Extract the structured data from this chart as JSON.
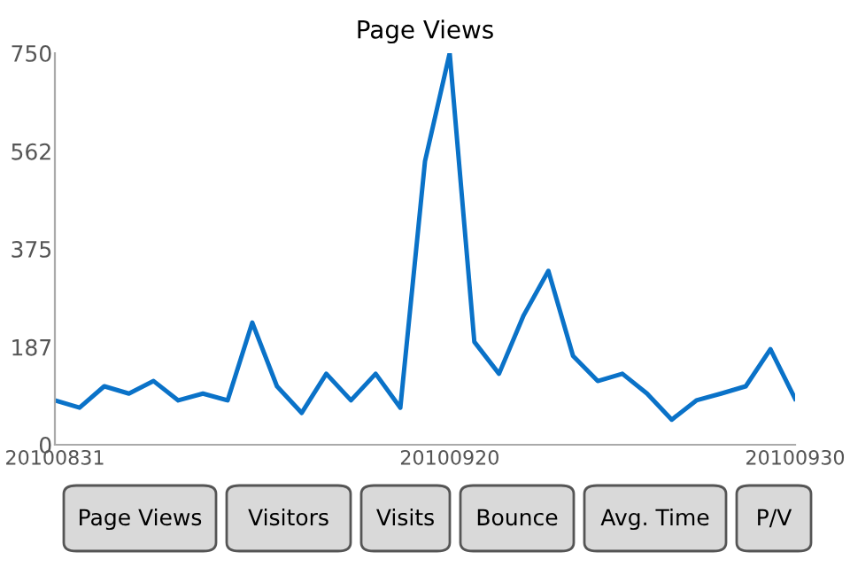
{
  "chart_data": {
    "type": "line",
    "title": "Page Views",
    "categories": [
      "20100831",
      null,
      null,
      null,
      null,
      null,
      null,
      null,
      null,
      null,
      null,
      null,
      null,
      null,
      null,
      null,
      "20100920",
      null,
      null,
      null,
      null,
      null,
      null,
      null,
      null,
      null,
      null,
      null,
      null,
      null,
      "20100930"
    ],
    "series": [
      {
        "color": "#0a72c8",
        "values": [
          85,
          71,
          112,
          98,
          122,
          85,
          98,
          85,
          234,
          112,
          61,
          136,
          85,
          136,
          71,
          543,
          750,
          197,
          136,
          248,
          333,
          170,
          122,
          136,
          98,
          48,
          85,
          98,
          112,
          183,
          88
        ]
      }
    ],
    "ylim": [
      0,
      750
    ],
    "yticks": [
      0,
      187,
      375,
      562,
      750
    ],
    "grid": false,
    "legend": false,
    "marker": "none",
    "line_style": "solid",
    "annotations": [
      "Page Views",
      "Visitors",
      "Visits",
      "Bounce",
      "Avg. Time",
      "P/V"
    ]
  }
}
